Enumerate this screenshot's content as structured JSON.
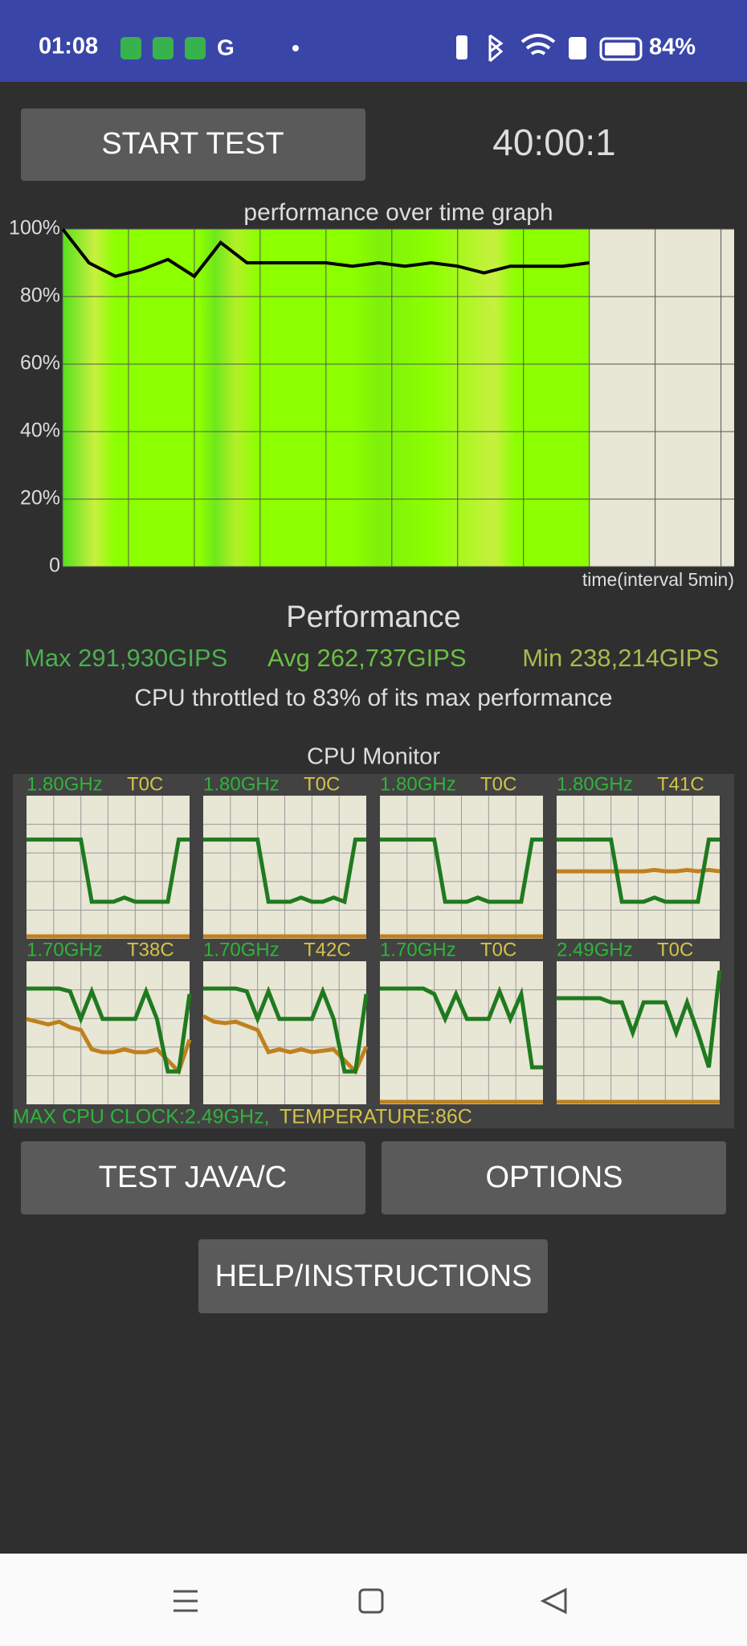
{
  "status_bar": {
    "time": "01:08",
    "battery": "84%"
  },
  "buttons": {
    "start": "START TEST",
    "test_java": "TEST JAVA/C",
    "options": "OPTIONS",
    "help": "HELP/INSTRUCTIONS"
  },
  "timer": "40:00:1",
  "chart_data": {
    "type": "line",
    "title": "performance over time graph",
    "x_label": "time(interval 5min)",
    "x": [
      0,
      2,
      4,
      6,
      8,
      10,
      12,
      14,
      16,
      18,
      20,
      22,
      24,
      26,
      28,
      30,
      32,
      34,
      36,
      38,
      40
    ],
    "series": [
      {
        "color": "#000000",
        "values": [
          100,
          90,
          86,
          88,
          91,
          86,
          96,
          90,
          90,
          90,
          90,
          89,
          90,
          89,
          90,
          89,
          87,
          89,
          89,
          89,
          90
        ]
      }
    ],
    "xlim": [
      0,
      51
    ],
    "xticks": [
      0,
      5,
      10,
      15,
      20,
      25,
      30,
      35,
      40,
      45,
      50
    ],
    "ylim": [
      0,
      100
    ],
    "yticks": [
      {
        "value": 0,
        "label": "0"
      },
      {
        "value": 20,
        "label": "20%"
      },
      {
        "value": 40,
        "label": "40%"
      },
      {
        "value": 60,
        "label": "60%"
      },
      {
        "value": 80,
        "label": "80%"
      },
      {
        "value": 100,
        "label": "100%"
      }
    ],
    "grid": true
  },
  "performance": {
    "title": "Performance",
    "max": "Max 291,930GIPS",
    "avg": "Avg 262,737GIPS",
    "min": "Min 238,214GIPS",
    "throttle": "CPU throttled to 83% of its max performance"
  },
  "cpu_monitor": {
    "title": "CPU Monitor",
    "ylim": [
      0,
      100
    ],
    "freq_color": "#1f7a1f",
    "temp_color": "#c0801e",
    "cores": [
      {
        "freq_label": "1.80GHz",
        "temp_label": "T0C",
        "freq": [
          70,
          70,
          70,
          70,
          70,
          70,
          25,
          25,
          25,
          28,
          25,
          25,
          25,
          25,
          70,
          70
        ],
        "temp": [
          0,
          0,
          0,
          0,
          0,
          0,
          0,
          0,
          0,
          0,
          0,
          0,
          0,
          0,
          0,
          0
        ]
      },
      {
        "freq_label": "1.80GHz",
        "temp_label": "T0C",
        "freq": [
          70,
          70,
          70,
          70,
          70,
          70,
          25,
          25,
          25,
          28,
          25,
          25,
          28,
          25,
          70,
          70
        ],
        "temp": [
          0,
          0,
          0,
          0,
          0,
          0,
          0,
          0,
          0,
          0,
          0,
          0,
          0,
          0,
          0,
          0
        ]
      },
      {
        "freq_label": "1.80GHz",
        "temp_label": "T0C",
        "freq": [
          70,
          70,
          70,
          70,
          70,
          70,
          25,
          25,
          25,
          28,
          25,
          25,
          25,
          25,
          70,
          70
        ],
        "temp": [
          0,
          0,
          0,
          0,
          0,
          0,
          0,
          0,
          0,
          0,
          0,
          0,
          0,
          0,
          0,
          0
        ]
      },
      {
        "freq_label": "1.80GHz",
        "temp_label": "T41C",
        "freq": [
          70,
          70,
          70,
          70,
          70,
          70,
          25,
          25,
          25,
          28,
          25,
          25,
          25,
          25,
          70,
          70
        ],
        "temp": [
          47,
          47,
          47,
          47,
          47,
          47,
          47,
          47,
          47,
          48,
          47,
          47,
          48,
          47,
          48,
          47
        ]
      },
      {
        "freq_label": "1.70GHz",
        "temp_label": "T38C",
        "freq": [
          82,
          82,
          82,
          82,
          80,
          60,
          80,
          60,
          60,
          60,
          60,
          80,
          60,
          22,
          22,
          78
        ],
        "temp": [
          60,
          58,
          56,
          58,
          54,
          52,
          38,
          36,
          36,
          38,
          36,
          36,
          38,
          30,
          22,
          45
        ]
      },
      {
        "freq_label": "1.70GHz",
        "temp_label": "T42C",
        "freq": [
          82,
          82,
          82,
          82,
          80,
          60,
          80,
          60,
          60,
          60,
          60,
          80,
          60,
          22,
          22,
          78
        ],
        "temp": [
          62,
          58,
          57,
          58,
          55,
          52,
          36,
          38,
          36,
          38,
          36,
          37,
          38,
          30,
          22,
          40
        ]
      },
      {
        "freq_label": "1.70GHz",
        "temp_label": "T0C",
        "freq": [
          82,
          82,
          82,
          82,
          82,
          78,
          60,
          78,
          60,
          60,
          60,
          80,
          60,
          78,
          25,
          25
        ],
        "temp": [
          0,
          0,
          0,
          0,
          0,
          0,
          0,
          0,
          0,
          0,
          0,
          0,
          0,
          0,
          0,
          0
        ]
      },
      {
        "freq_label": "2.49GHz",
        "temp_label": "T0C",
        "freq": [
          75,
          75,
          75,
          75,
          75,
          72,
          72,
          50,
          72,
          72,
          72,
          50,
          72,
          50,
          25,
          95
        ],
        "temp": [
          0,
          0,
          0,
          0,
          0,
          0,
          0,
          0,
          0,
          0,
          0,
          0,
          0,
          0,
          0,
          0
        ]
      }
    ],
    "max_clock": "MAX CPU CLOCK:2.49GHz,",
    "temperature": "TEMPERATURE:86C"
  }
}
